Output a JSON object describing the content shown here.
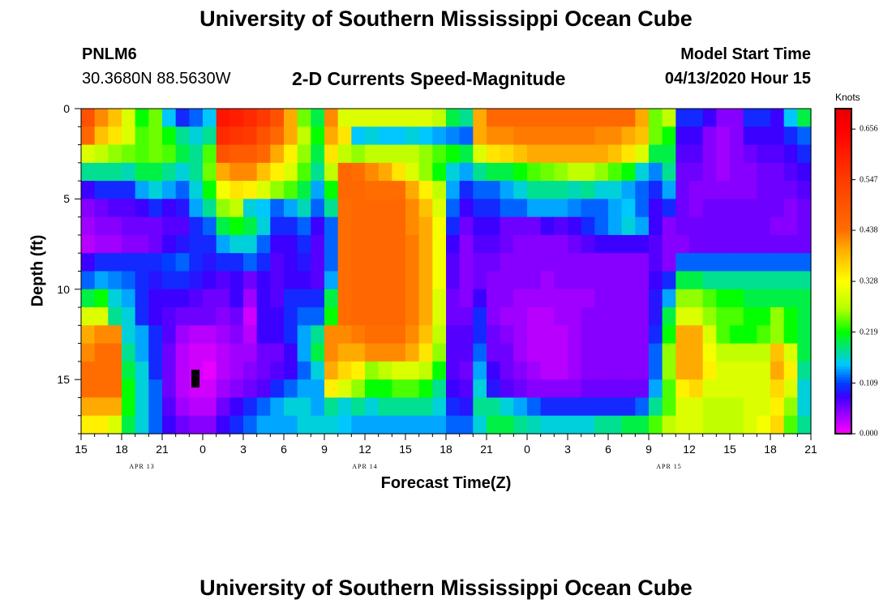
{
  "header": {
    "title": "University of Southern Mississippi Ocean Cube",
    "station_id": "PNLM6",
    "coords": "30.3680N 88.5630W",
    "subtitle": "2-D Currents Speed-Magnitude",
    "model_label": "Model Start Time",
    "model_time": "04/13/2020 Hour 15"
  },
  "footer": {
    "title": "University of Southern Mississippi Ocean Cube"
  },
  "colors": {
    "frame": "#000000",
    "marker": "#000000"
  },
  "chart_data": {
    "type": "heatmap",
    "title": "2-D Currents Speed-Magnitude",
    "xlabel": "Forecast Time(Z)",
    "ylabel": "Depth (ft)",
    "x_start_hour": 15,
    "x_hours": 54,
    "xlim": [
      0,
      54
    ],
    "ylim": [
      0,
      18
    ],
    "x_ticks": [
      {
        "h": 0,
        "label": "15"
      },
      {
        "h": 3,
        "label": "18"
      },
      {
        "h": 6,
        "label": "21"
      },
      {
        "h": 9,
        "label": "0"
      },
      {
        "h": 12,
        "label": "3"
      },
      {
        "h": 15,
        "label": "6"
      },
      {
        "h": 18,
        "label": "9"
      },
      {
        "h": 21,
        "label": "12"
      },
      {
        "h": 24,
        "label": "15"
      },
      {
        "h": 27,
        "label": "18"
      },
      {
        "h": 30,
        "label": "21"
      },
      {
        "h": 33,
        "label": "0"
      },
      {
        "h": 36,
        "label": "3"
      },
      {
        "h": 39,
        "label": "6"
      },
      {
        "h": 42,
        "label": "9"
      },
      {
        "h": 45,
        "label": "12"
      },
      {
        "h": 48,
        "label": "15"
      },
      {
        "h": 51,
        "label": "18"
      },
      {
        "h": 54,
        "label": "21"
      }
    ],
    "y_ticks": [
      {
        "d": 0,
        "label": "0"
      },
      {
        "d": 5,
        "label": "5"
      },
      {
        "d": 10,
        "label": "10"
      },
      {
        "d": 15,
        "label": "15"
      }
    ],
    "date_labels": [
      {
        "h": 4.5,
        "label": "APR 13"
      },
      {
        "h": 21,
        "label": "APR 14"
      },
      {
        "h": 43.5,
        "label": "APR 15"
      }
    ],
    "colorbar": {
      "unit": "Knots",
      "min": 0.0,
      "max": 0.7,
      "ticks": [
        0.0,
        0.109,
        0.219,
        0.328,
        0.438,
        0.547,
        0.656
      ],
      "labels": [
        "0.000",
        "0.109",
        "0.219",
        "0.328",
        "0.438",
        "0.547",
        "0.656"
      ]
    },
    "n_depth_rows": 18,
    "values_knots": [
      [
        0.5,
        0.42,
        0.38,
        0.3,
        0.22,
        0.25,
        0.15,
        0.1,
        0.12,
        0.15,
        0.62,
        0.6,
        0.58,
        0.55,
        0.5,
        0.4,
        0.25,
        0.2,
        0.42,
        0.3,
        0.3,
        0.3,
        0.3,
        0.3,
        0.3,
        0.3,
        0.28,
        0.2,
        0.18,
        0.4,
        0.45,
        0.45,
        0.45,
        0.45,
        0.45,
        0.45,
        0.45,
        0.45,
        0.45,
        0.45,
        0.45,
        0.4,
        0.25,
        0.28,
        0.1,
        0.1,
        0.08,
        0.05,
        0.05,
        0.1,
        0.1,
        0.08,
        0.15,
        0.2
      ],
      [
        0.45,
        0.38,
        0.35,
        0.3,
        0.24,
        0.25,
        0.22,
        0.18,
        0.16,
        0.18,
        0.58,
        0.56,
        0.55,
        0.5,
        0.45,
        0.4,
        0.28,
        0.22,
        0.4,
        0.35,
        0.15,
        0.16,
        0.15,
        0.15,
        0.16,
        0.15,
        0.14,
        0.13,
        0.12,
        0.4,
        0.42,
        0.42,
        0.43,
        0.43,
        0.43,
        0.43,
        0.43,
        0.43,
        0.42,
        0.42,
        0.4,
        0.38,
        0.25,
        0.22,
        0.08,
        0.08,
        0.05,
        0.04,
        0.05,
        0.08,
        0.08,
        0.08,
        0.1,
        0.12
      ],
      [
        0.3,
        0.28,
        0.26,
        0.25,
        0.24,
        0.25,
        0.24,
        0.2,
        0.18,
        0.24,
        0.5,
        0.48,
        0.48,
        0.45,
        0.4,
        0.34,
        0.26,
        0.2,
        0.35,
        0.28,
        0.26,
        0.28,
        0.28,
        0.28,
        0.28,
        0.26,
        0.24,
        0.22,
        0.2,
        0.3,
        0.35,
        0.36,
        0.38,
        0.4,
        0.4,
        0.4,
        0.4,
        0.4,
        0.4,
        0.38,
        0.35,
        0.3,
        0.2,
        0.2,
        0.07,
        0.07,
        0.05,
        0.04,
        0.05,
        0.06,
        0.07,
        0.07,
        0.08,
        0.1
      ],
      [
        0.18,
        0.18,
        0.18,
        0.17,
        0.2,
        0.2,
        0.18,
        0.16,
        0.18,
        0.25,
        0.4,
        0.42,
        0.42,
        0.38,
        0.34,
        0.3,
        0.24,
        0.18,
        0.28,
        0.45,
        0.44,
        0.42,
        0.4,
        0.35,
        0.3,
        0.26,
        0.22,
        0.16,
        0.14,
        0.18,
        0.2,
        0.2,
        0.22,
        0.24,
        0.25,
        0.26,
        0.28,
        0.28,
        0.26,
        0.24,
        0.22,
        0.16,
        0.13,
        0.18,
        0.06,
        0.06,
        0.05,
        0.04,
        0.05,
        0.05,
        0.06,
        0.06,
        0.07,
        0.08
      ],
      [
        0.08,
        0.1,
        0.1,
        0.1,
        0.14,
        0.16,
        0.14,
        0.12,
        0.16,
        0.22,
        0.32,
        0.35,
        0.34,
        0.3,
        0.26,
        0.24,
        0.2,
        0.14,
        0.22,
        0.45,
        0.45,
        0.44,
        0.44,
        0.44,
        0.4,
        0.34,
        0.28,
        0.14,
        0.1,
        0.12,
        0.12,
        0.14,
        0.16,
        0.18,
        0.18,
        0.18,
        0.17,
        0.18,
        0.16,
        0.16,
        0.14,
        0.12,
        0.1,
        0.14,
        0.06,
        0.05,
        0.05,
        0.05,
        0.05,
        0.05,
        0.06,
        0.06,
        0.06,
        0.07
      ],
      [
        0.05,
        0.06,
        0.07,
        0.07,
        0.08,
        0.1,
        0.08,
        0.09,
        0.14,
        0.18,
        0.26,
        0.28,
        0.16,
        0.15,
        0.12,
        0.14,
        0.17,
        0.12,
        0.18,
        0.44,
        0.45,
        0.45,
        0.45,
        0.45,
        0.42,
        0.38,
        0.3,
        0.12,
        0.08,
        0.1,
        0.1,
        0.12,
        0.12,
        0.14,
        0.14,
        0.14,
        0.13,
        0.12,
        0.12,
        0.14,
        0.15,
        0.12,
        0.08,
        0.1,
        0.06,
        0.05,
        0.06,
        0.06,
        0.06,
        0.06,
        0.06,
        0.06,
        0.05,
        0.06
      ],
      [
        0.04,
        0.05,
        0.05,
        0.06,
        0.06,
        0.06,
        0.07,
        0.07,
        0.1,
        0.12,
        0.2,
        0.22,
        0.2,
        0.16,
        0.1,
        0.1,
        0.12,
        0.08,
        0.12,
        0.44,
        0.45,
        0.45,
        0.45,
        0.45,
        0.42,
        0.4,
        0.32,
        0.1,
        0.06,
        0.08,
        0.08,
        0.06,
        0.06,
        0.06,
        0.08,
        0.07,
        0.08,
        0.1,
        0.12,
        0.14,
        0.16,
        0.14,
        0.08,
        0.05,
        0.06,
        0.06,
        0.06,
        0.06,
        0.06,
        0.06,
        0.06,
        0.05,
        0.05,
        0.06
      ],
      [
        0.03,
        0.04,
        0.04,
        0.05,
        0.05,
        0.06,
        0.08,
        0.09,
        0.1,
        0.1,
        0.14,
        0.16,
        0.16,
        0.12,
        0.08,
        0.08,
        0.1,
        0.07,
        0.12,
        0.44,
        0.45,
        0.45,
        0.45,
        0.45,
        0.43,
        0.4,
        0.32,
        0.08,
        0.05,
        0.07,
        0.07,
        0.06,
        0.05,
        0.05,
        0.05,
        0.05,
        0.06,
        0.07,
        0.08,
        0.08,
        0.08,
        0.08,
        0.07,
        0.05,
        0.05,
        0.06,
        0.06,
        0.06,
        0.06,
        0.06,
        0.06,
        0.06,
        0.06,
        0.06
      ],
      [
        0.08,
        0.1,
        0.1,
        0.1,
        0.1,
        0.1,
        0.11,
        0.12,
        0.1,
        0.09,
        0.1,
        0.1,
        0.12,
        0.1,
        0.07,
        0.08,
        0.09,
        0.07,
        0.12,
        0.44,
        0.45,
        0.45,
        0.45,
        0.45,
        0.43,
        0.4,
        0.32,
        0.07,
        0.05,
        0.06,
        0.06,
        0.05,
        0.05,
        0.05,
        0.05,
        0.05,
        0.05,
        0.05,
        0.05,
        0.05,
        0.05,
        0.05,
        0.07,
        0.05,
        0.12,
        0.12,
        0.12,
        0.12,
        0.12,
        0.12,
        0.12,
        0.12,
        0.12,
        0.12
      ],
      [
        0.12,
        0.14,
        0.13,
        0.12,
        0.1,
        0.09,
        0.1,
        0.1,
        0.09,
        0.08,
        0.07,
        0.08,
        0.06,
        0.08,
        0.07,
        0.08,
        0.08,
        0.07,
        0.14,
        0.44,
        0.45,
        0.45,
        0.45,
        0.45,
        0.43,
        0.4,
        0.32,
        0.07,
        0.05,
        0.06,
        0.05,
        0.05,
        0.05,
        0.05,
        0.04,
        0.05,
        0.05,
        0.05,
        0.05,
        0.05,
        0.05,
        0.05,
        0.08,
        0.1,
        0.2,
        0.2,
        0.18,
        0.18,
        0.18,
        0.18,
        0.18,
        0.18,
        0.18,
        0.18
      ],
      [
        0.2,
        0.22,
        0.16,
        0.14,
        0.1,
        0.08,
        0.08,
        0.08,
        0.07,
        0.06,
        0.06,
        0.08,
        0.04,
        0.08,
        0.07,
        0.1,
        0.1,
        0.1,
        0.2,
        0.44,
        0.45,
        0.45,
        0.45,
        0.45,
        0.43,
        0.4,
        0.3,
        0.06,
        0.05,
        0.08,
        0.05,
        0.05,
        0.04,
        0.04,
        0.04,
        0.04,
        0.04,
        0.04,
        0.05,
        0.05,
        0.05,
        0.05,
        0.09,
        0.14,
        0.26,
        0.26,
        0.24,
        0.22,
        0.22,
        0.2,
        0.2,
        0.2,
        0.2,
        0.2
      ],
      [
        0.3,
        0.3,
        0.18,
        0.16,
        0.1,
        0.08,
        0.07,
        0.06,
        0.06,
        0.06,
        0.05,
        0.06,
        0.02,
        0.08,
        0.08,
        0.1,
        0.12,
        0.12,
        0.22,
        0.44,
        0.45,
        0.45,
        0.45,
        0.45,
        0.43,
        0.4,
        0.3,
        0.06,
        0.06,
        0.1,
        0.05,
        0.04,
        0.04,
        0.03,
        0.03,
        0.04,
        0.04,
        0.05,
        0.05,
        0.05,
        0.05,
        0.05,
        0.09,
        0.2,
        0.3,
        0.3,
        0.26,
        0.24,
        0.24,
        0.22,
        0.22,
        0.26,
        0.22,
        0.2
      ],
      [
        0.4,
        0.42,
        0.42,
        0.16,
        0.14,
        0.1,
        0.07,
        0.04,
        0.03,
        0.03,
        0.04,
        0.05,
        0.03,
        0.08,
        0.08,
        0.1,
        0.14,
        0.18,
        0.42,
        0.42,
        0.43,
        0.44,
        0.44,
        0.44,
        0.42,
        0.38,
        0.28,
        0.07,
        0.07,
        0.1,
        0.06,
        0.05,
        0.04,
        0.03,
        0.03,
        0.03,
        0.04,
        0.05,
        0.05,
        0.05,
        0.05,
        0.05,
        0.1,
        0.22,
        0.4,
        0.4,
        0.3,
        0.24,
        0.22,
        0.22,
        0.24,
        0.26,
        0.22,
        0.2
      ],
      [
        0.42,
        0.44,
        0.44,
        0.18,
        0.14,
        0.1,
        0.06,
        0.03,
        0.02,
        0.02,
        0.03,
        0.04,
        0.04,
        0.06,
        0.06,
        0.08,
        0.14,
        0.2,
        0.42,
        0.4,
        0.4,
        0.42,
        0.42,
        0.42,
        0.4,
        0.35,
        0.26,
        0.07,
        0.07,
        0.12,
        0.06,
        0.06,
        0.04,
        0.03,
        0.03,
        0.03,
        0.04,
        0.05,
        0.05,
        0.05,
        0.05,
        0.05,
        0.12,
        0.26,
        0.4,
        0.4,
        0.32,
        0.28,
        0.28,
        0.28,
        0.28,
        0.38,
        0.3,
        0.2
      ],
      [
        0.44,
        0.44,
        0.44,
        0.2,
        0.16,
        0.1,
        0.06,
        0.03,
        0.02,
        0.01,
        0.03,
        0.04,
        0.05,
        0.06,
        0.07,
        0.08,
        0.12,
        0.16,
        0.4,
        0.36,
        0.34,
        0.26,
        0.28,
        0.3,
        0.3,
        0.28,
        0.22,
        0.07,
        0.06,
        0.14,
        0.08,
        0.06,
        0.05,
        0.04,
        0.03,
        0.03,
        0.04,
        0.05,
        0.05,
        0.05,
        0.05,
        0.05,
        0.12,
        0.26,
        0.4,
        0.4,
        0.34,
        0.3,
        0.3,
        0.3,
        0.3,
        0.4,
        0.34,
        0.18
      ],
      [
        0.44,
        0.44,
        0.44,
        0.22,
        0.16,
        0.12,
        0.06,
        0.03,
        0.02,
        0.02,
        0.04,
        0.05,
        0.06,
        0.07,
        0.1,
        0.12,
        0.14,
        0.14,
        0.34,
        0.3,
        0.26,
        0.22,
        0.22,
        0.24,
        0.24,
        0.22,
        0.18,
        0.08,
        0.07,
        0.16,
        0.09,
        0.07,
        0.06,
        0.05,
        0.05,
        0.05,
        0.05,
        0.06,
        0.06,
        0.06,
        0.06,
        0.06,
        0.14,
        0.24,
        0.34,
        0.36,
        0.3,
        0.3,
        0.3,
        0.3,
        0.3,
        0.36,
        0.3,
        0.16
      ],
      [
        0.4,
        0.4,
        0.4,
        0.22,
        0.16,
        0.12,
        0.07,
        0.04,
        0.03,
        0.03,
        0.06,
        0.08,
        0.1,
        0.12,
        0.14,
        0.16,
        0.16,
        0.14,
        0.18,
        0.16,
        0.18,
        0.16,
        0.18,
        0.18,
        0.18,
        0.18,
        0.16,
        0.1,
        0.09,
        0.18,
        0.18,
        0.16,
        0.14,
        0.12,
        0.1,
        0.1,
        0.1,
        0.1,
        0.1,
        0.1,
        0.1,
        0.12,
        0.18,
        0.24,
        0.3,
        0.3,
        0.28,
        0.28,
        0.28,
        0.3,
        0.3,
        0.34,
        0.26,
        0.16
      ],
      [
        0.34,
        0.34,
        0.3,
        0.2,
        0.16,
        0.12,
        0.08,
        0.06,
        0.05,
        0.05,
        0.08,
        0.1,
        0.12,
        0.14,
        0.14,
        0.14,
        0.16,
        0.16,
        0.16,
        0.15,
        0.14,
        0.14,
        0.14,
        0.14,
        0.14,
        0.14,
        0.14,
        0.12,
        0.12,
        0.16,
        0.2,
        0.2,
        0.18,
        0.17,
        0.16,
        0.16,
        0.16,
        0.16,
        0.18,
        0.18,
        0.2,
        0.2,
        0.24,
        0.28,
        0.3,
        0.3,
        0.28,
        0.28,
        0.28,
        0.3,
        0.32,
        0.36,
        0.24,
        0.18
      ]
    ]
  }
}
